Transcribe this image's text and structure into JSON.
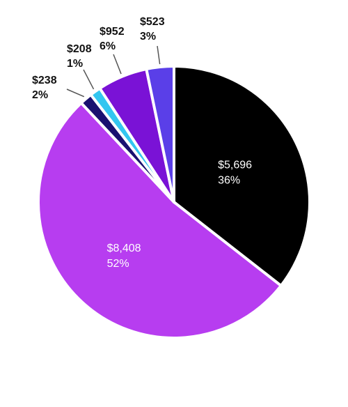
{
  "chart_data": {
    "type": "pie",
    "slices": [
      {
        "value": "$5,696",
        "percent": "36%",
        "amount": 5696,
        "color": "#000000",
        "label_position": "inside"
      },
      {
        "value": "$8,408",
        "percent": "52%",
        "amount": 8408,
        "color": "#b73df0",
        "label_position": "inside"
      },
      {
        "value": "$238",
        "percent": "2%",
        "amount": 238,
        "color": "#1a1170",
        "label_position": "outside"
      },
      {
        "value": "$208",
        "percent": "1%",
        "amount": 208,
        "color": "#33c6f0",
        "label_position": "outside"
      },
      {
        "value": "$952",
        "percent": "6%",
        "amount": 952,
        "color": "#7a12d6",
        "label_position": "outside"
      },
      {
        "value": "$523",
        "percent": "3%",
        "amount": 523,
        "color": "#5a3fe8",
        "label_position": "outside"
      }
    ],
    "start_angle_deg": 0,
    "direction": "clockwise"
  }
}
